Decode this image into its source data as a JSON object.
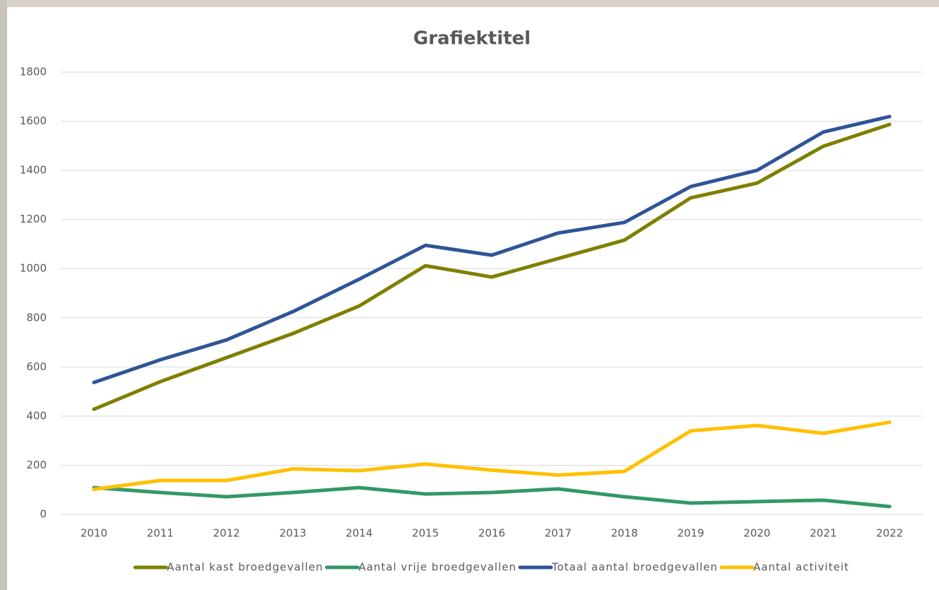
{
  "chart_data": {
    "type": "line",
    "title": "Grafiektitel",
    "categories": [
      "2010",
      "2011",
      "2012",
      "2013",
      "2014",
      "2015",
      "2016",
      "2017",
      "2018",
      "2019",
      "2020",
      "2021",
      "2022"
    ],
    "series": [
      {
        "name": "Aantal kast broedgevallen",
        "color": "#7f7f00",
        "values": [
          428,
          540,
          638,
          736,
          848,
          1012,
          966,
          1041,
          1116,
          1288,
          1348,
          1498,
          1587
        ]
      },
      {
        "name": "Aantal vrije broedgevallen",
        "color": "#339966",
        "values": [
          109,
          89,
          72,
          89,
          109,
          83,
          89,
          104,
          72,
          46,
          52,
          58,
          32
        ]
      },
      {
        "name": "Totaal aantal broedgevallen",
        "color": "#2f5597",
        "values": [
          537,
          629,
          710,
          825,
          957,
          1095,
          1055,
          1145,
          1188,
          1334,
          1400,
          1556,
          1619
        ]
      },
      {
        "name": "Aantal activiteit",
        "color": "#ffc000",
        "values": [
          102,
          138,
          138,
          185,
          178,
          205,
          180,
          160,
          175,
          340,
          362,
          330,
          375
        ]
      }
    ],
    "ylim": [
      0,
      1800
    ],
    "yticks": [
      0,
      200,
      400,
      600,
      800,
      1000,
      1200,
      1400,
      1600,
      1800
    ],
    "grid": true,
    "legend": "bottom"
  }
}
